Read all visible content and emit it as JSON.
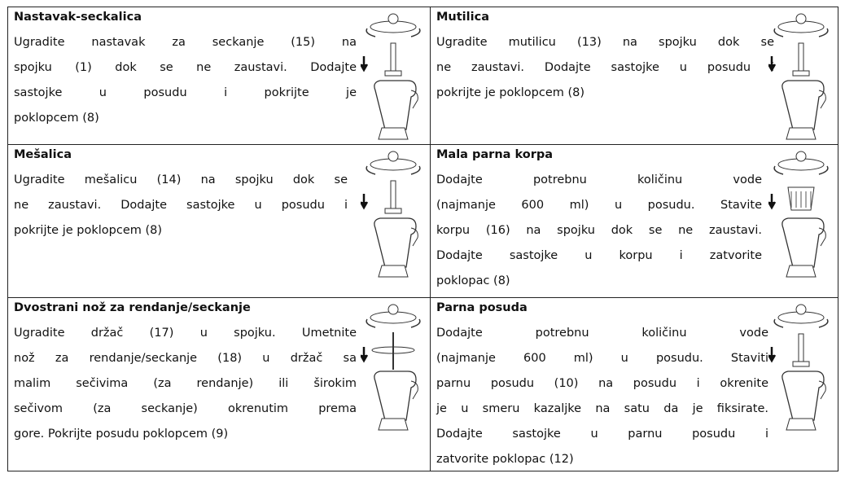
{
  "cells": [
    {
      "title": "Nastavak-seckalica",
      "lines": [
        "Ugradite nastavak za seckanje (15) na",
        "spojku (1) dok se ne zaustavi. Dodajte",
        "sastojke u posudu i pokrijte je",
        "poklopcem (8)"
      ]
    },
    {
      "title": "Mutilica",
      "lines": [
        "Ugradite mutilicu (13) na spojku dok se",
        "ne zaustavi. Dodajte sastojke u posudu i",
        "pokrijte je poklopcem (8)"
      ]
    },
    {
      "title": "Mešalica",
      "lines": [
        "Ugradite mešalicu (14) na spojku dok se",
        "ne zaustavi. Dodajte sastojke u posudu i",
        "pokrijte je poklopcem (8)"
      ]
    },
    {
      "title": "Mala parna korpa",
      "lines": [
        "Dodajte potrebnu količinu vode",
        "(najmanje 600 ml) u posudu. Stavite",
        "korpu (16) na spojku dok se ne zaustavi.",
        "Dodajte sastojke u korpu i zatvorite",
        "poklopac (8)"
      ]
    },
    {
      "title": "Dvostrani nož za rendanje/seckanje",
      "lines": [
        "Ugradite držač (17) u spojku. Umetnite",
        "nož za rendanje/seckanje (18) u držač sa",
        "malim sečivima (za rendanje) ili širokim",
        "sečivom (za seckanje) okrenutim prema",
        "gore. Pokrijte posudu poklopcem (9)"
      ]
    },
    {
      "title": "Parna posuda",
      "lines": [
        "Dodajte potrebnu količinu vode",
        "(najmanje 600 ml) u posudu. Staviti",
        "parnu posudu (10) na posudu i okrenite",
        "je u smeru kazaljke na satu da je fiksirate.",
        "Dodajte sastojke u parnu posudu i",
        "zatvorite poklopac (12)"
      ]
    }
  ]
}
